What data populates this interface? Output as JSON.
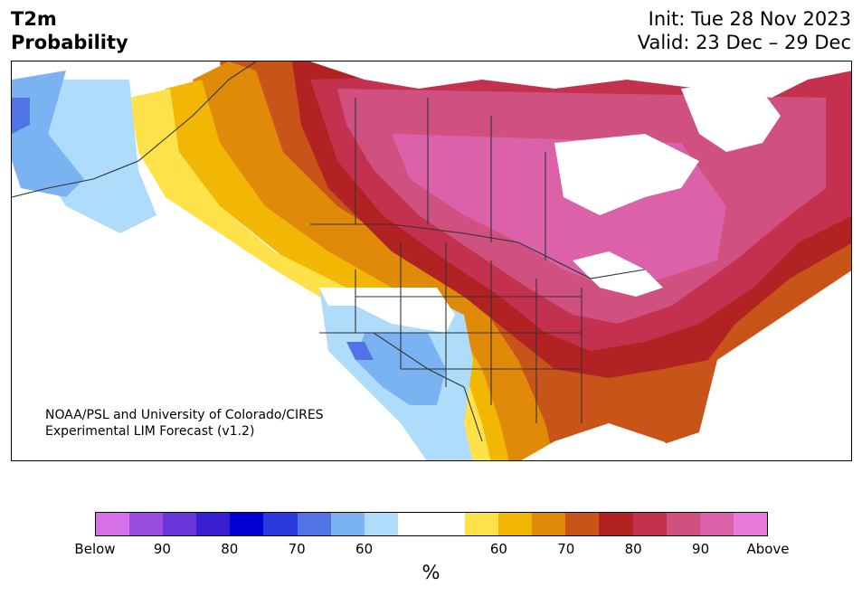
{
  "header": {
    "title_line1": "T2m",
    "title_line2": "Probability",
    "init_text": "Init: Tue 28 Nov 2023",
    "valid_text": "Valid: 23 Dec – 29 Dec"
  },
  "credit": {
    "line1": "NOAA/PSL and University of Colorado/CIRES",
    "line2": "Experimental LIM Forecast (v1.2)"
  },
  "colorbar": {
    "unit_label": "%",
    "colors": [
      "#d570e8",
      "#9b4de0",
      "#6a35d8",
      "#3a1ed2",
      "#0000d2",
      "#2a3adc",
      "#5073e6",
      "#7ab2f2",
      "#aedcfa",
      "#ffffff",
      "#ffffff",
      "#ffe14a",
      "#f2b705",
      "#e08a0a",
      "#c8541a",
      "#b22222",
      "#c4314f",
      "#d0507f",
      "#db62a8",
      "#e878d9"
    ],
    "tick_labels": [
      "Below",
      "90",
      "80",
      "70",
      "60",
      "60",
      "70",
      "80",
      "90",
      "Above"
    ]
  },
  "map_colors": {
    "cool_lightest": "#aedcfa",
    "cool_light": "#7ab2f2",
    "cool_mid": "#5073e6",
    "warm_yellow": "#ffe14a",
    "warm_gold": "#f2b705",
    "warm_orange": "#e08a0a",
    "warm_burnt": "#c8541a",
    "warm_red": "#b22222",
    "warm_crimson": "#c4314f",
    "warm_rose": "#d0507f",
    "warm_pink": "#db62a8",
    "border": "#333333"
  }
}
